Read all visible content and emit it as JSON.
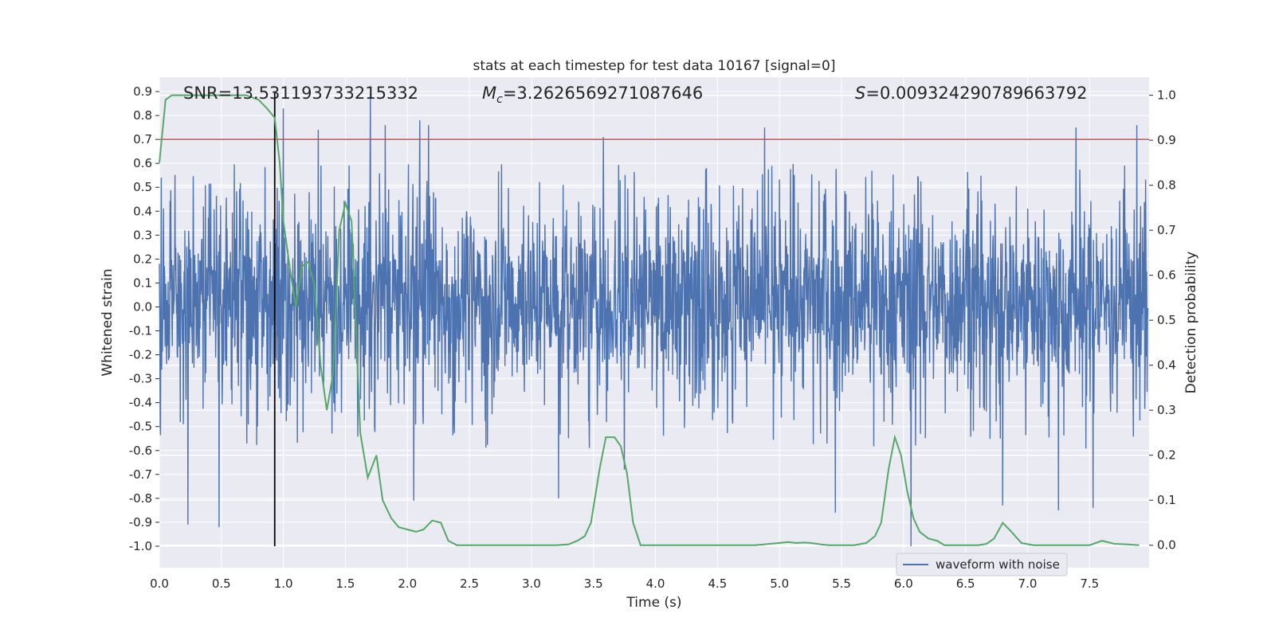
{
  "chart_data": {
    "type": "line",
    "title": "stats at each timestep for test data 10167 [signal=0]",
    "xlabel": "Time (s)",
    "ylabel": "Whitened strain",
    "ylabel_right": "Detection probability",
    "xlim": [
      0.0,
      7.98
    ],
    "ylim": [
      -1.09,
      0.96
    ],
    "ylim_right": [
      -0.05,
      1.04
    ],
    "xticks": [
      "0.0",
      "0.5",
      "1.0",
      "1.5",
      "2.0",
      "2.5",
      "3.0",
      "3.5",
      "4.0",
      "4.5",
      "5.0",
      "5.5",
      "6.0",
      "6.5",
      "7.0",
      "7.5"
    ],
    "yticks": [
      "0.9",
      "0.8",
      "0.7",
      "0.6",
      "0.5",
      "0.4",
      "0.3",
      "0.2",
      "0.1",
      "0.0",
      "-0.1",
      "-0.2",
      "-0.3",
      "-0.4",
      "-0.5",
      "-0.6",
      "-0.7",
      "-0.8",
      "-0.9",
      "-1.0"
    ],
    "yticks_right": [
      "1.0",
      "0.9",
      "0.8",
      "0.7",
      "0.6",
      "0.5",
      "0.4",
      "0.3",
      "0.2",
      "0.1",
      "0.0"
    ],
    "grid": true,
    "legend_position": "lower-right",
    "annotations": {
      "snr": "SNR=13.531193733215332",
      "mc_symbol": "M",
      "mc_subscript": "c",
      "mc_value": "=3.2626569271087646",
      "s_symbol": "S",
      "s_value": "=0.009324290789663792"
    },
    "threshold_line_y": 0.7,
    "marker_line_x": 0.93,
    "colors": {
      "background": "#eaeaf2",
      "waveform": "#4c72b0",
      "probability": "#55a868",
      "threshold": "#c44e52",
      "marker": "#000000",
      "grid": "#ffffff"
    },
    "series": [
      {
        "name": "waveform with noise",
        "description_of_values": "dense noise spanning roughly -0.5..0.6 with spikes",
        "spikes": [
          {
            "x": 0.23,
            "y": -0.91
          },
          {
            "x": 0.48,
            "y": -0.92
          },
          {
            "x": 1.7,
            "y": 0.89
          },
          {
            "x": 1.0,
            "y": 0.83
          },
          {
            "x": 1.28,
            "y": 0.74
          },
          {
            "x": 2.1,
            "y": 0.78
          },
          {
            "x": 2.17,
            "y": 0.76
          },
          {
            "x": 1.82,
            "y": 0.76
          },
          {
            "x": 3.58,
            "y": 0.71
          },
          {
            "x": 4.88,
            "y": 0.75
          },
          {
            "x": 7.39,
            "y": 0.75
          },
          {
            "x": 7.88,
            "y": 0.76
          },
          {
            "x": 2.05,
            "y": -0.81
          },
          {
            "x": 3.22,
            "y": -0.8
          },
          {
            "x": 5.45,
            "y": -0.86
          },
          {
            "x": 6.06,
            "y": -1.0
          },
          {
            "x": 7.25,
            "y": -0.85
          },
          {
            "x": 7.53,
            "y": -0.84
          },
          {
            "x": 6.8,
            "y": -0.83
          },
          {
            "x": 3.75,
            "y": -0.68
          }
        ]
      },
      {
        "name": "",
        "axis": "right",
        "x": [
          0.0,
          0.05,
          0.1,
          0.2,
          0.3,
          0.4,
          0.5,
          0.6,
          0.7,
          0.8,
          0.87,
          0.93,
          0.97,
          1.0,
          1.05,
          1.1,
          1.15,
          1.2,
          1.25,
          1.3,
          1.35,
          1.4,
          1.45,
          1.5,
          1.55,
          1.62,
          1.68,
          1.75,
          1.8,
          1.87,
          1.93,
          2.0,
          2.07,
          2.13,
          2.2,
          2.27,
          2.33,
          2.4,
          2.5,
          2.67,
          2.8,
          3.0,
          3.2,
          3.3,
          3.37,
          3.43,
          3.48,
          3.55,
          3.6,
          3.67,
          3.72,
          3.77,
          3.82,
          3.88,
          3.93,
          4.0,
          4.2,
          4.5,
          4.8,
          5.0,
          5.07,
          5.13,
          5.2,
          5.25,
          5.33,
          5.4,
          5.6,
          5.7,
          5.77,
          5.82,
          5.88,
          5.93,
          5.98,
          6.03,
          6.08,
          6.13,
          6.2,
          6.27,
          6.33,
          6.5,
          6.6,
          6.67,
          6.73,
          6.8,
          6.87,
          6.95,
          7.05,
          7.2,
          7.4,
          7.5,
          7.6,
          7.7,
          7.8,
          7.9
        ],
        "y": [
          0.85,
          0.99,
          1.0,
          1.0,
          1.0,
          1.0,
          1.0,
          1.0,
          1.0,
          0.99,
          0.97,
          0.95,
          0.85,
          0.72,
          0.62,
          0.53,
          0.62,
          0.63,
          0.58,
          0.4,
          0.3,
          0.38,
          0.7,
          0.76,
          0.72,
          0.25,
          0.15,
          0.2,
          0.1,
          0.06,
          0.04,
          0.035,
          0.03,
          0.035,
          0.055,
          0.05,
          0.01,
          0.0,
          0.0,
          0.0,
          0.0,
          0.0,
          0.0,
          0.002,
          0.01,
          0.02,
          0.05,
          0.17,
          0.24,
          0.24,
          0.22,
          0.16,
          0.05,
          0.0,
          0.0,
          0.0,
          0.0,
          0.0,
          0.0,
          0.005,
          0.007,
          0.005,
          0.006,
          0.005,
          0.002,
          0.0,
          0.0,
          0.005,
          0.02,
          0.05,
          0.17,
          0.24,
          0.2,
          0.12,
          0.06,
          0.03,
          0.015,
          0.01,
          0.0,
          0.0,
          0.0,
          0.003,
          0.015,
          0.05,
          0.03,
          0.005,
          0.0,
          0.0,
          0.0,
          0.0,
          0.01,
          0.003,
          0.002,
          0.0
        ]
      }
    ]
  }
}
